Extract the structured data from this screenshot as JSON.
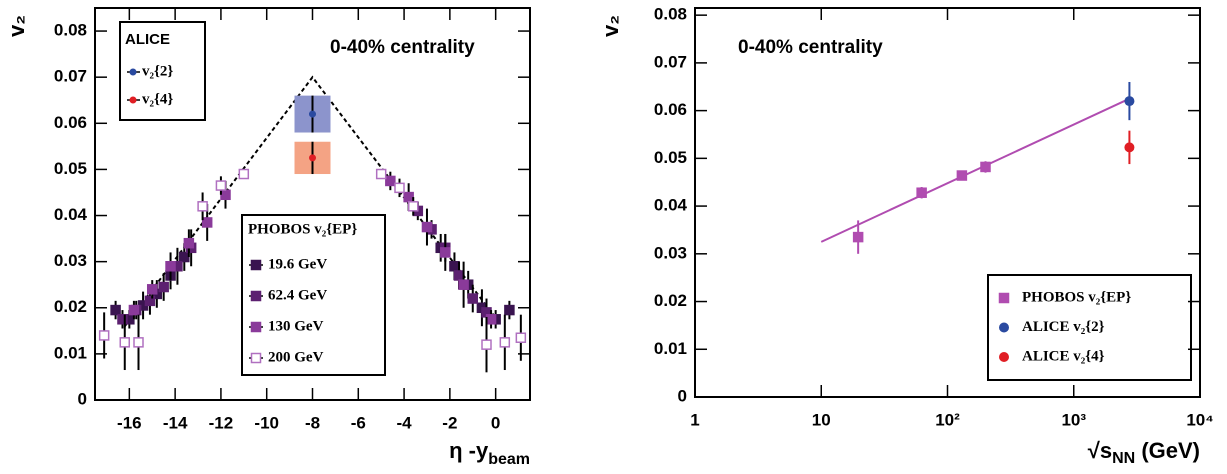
{
  "chart_data": [
    {
      "type": "scatter",
      "annotation": "0-40% centrality",
      "y_label": "v₂",
      "x_label": {
        "main": "η -y",
        "sub": "beam"
      },
      "xlim": [
        -17.5,
        1.5
      ],
      "xticks": [
        -16,
        -14,
        -12,
        -10,
        -8,
        -6,
        -4,
        -2,
        0
      ],
      "ylim": [
        0,
        0.085
      ],
      "yticks": [
        0,
        0.01,
        0.02,
        0.03,
        0.04,
        0.05,
        0.06,
        0.07,
        0.08
      ],
      "legend_title": "PHOBOS v₂{EP}",
      "series": [
        {
          "name": "19.6 GeV",
          "color": "#3a1450",
          "marker": "square",
          "x": [
            -16.6,
            -16.0,
            -15.4,
            -14.8,
            -14.2,
            -13.6,
            -2.4,
            -1.8,
            -1.2,
            -0.6,
            0.0,
            0.6
          ],
          "values": [
            0.0195,
            0.0175,
            0.0205,
            0.023,
            0.027,
            0.031,
            0.033,
            0.029,
            0.025,
            0.02,
            0.0175,
            0.0195
          ],
          "errors": [
            0.002,
            0.002,
            0.003,
            0.003,
            0.003,
            0.003,
            0.003,
            0.003,
            0.003,
            0.004,
            0.002,
            0.002
          ]
        },
        {
          "name": "62.4 GeV",
          "color": "#5c2070",
          "marker": "square",
          "x": [
            -16.3,
            -15.7,
            -15.1,
            -14.5,
            -13.9,
            -13.3,
            -3.4,
            -2.8,
            -2.2,
            -1.6,
            -1.0,
            -0.4
          ],
          "values": [
            0.0175,
            0.0195,
            0.0215,
            0.0245,
            0.029,
            0.033,
            0.041,
            0.037,
            0.033,
            0.027,
            0.022,
            0.019
          ],
          "errors": [
            0.002,
            0.002,
            0.003,
            0.003,
            0.004,
            0.004,
            0.002,
            0.002,
            0.003,
            0.003,
            0.003,
            0.003
          ]
        },
        {
          "name": "130 GeV",
          "color": "#8a3a9a",
          "marker": "square",
          "x": [
            -15.8,
            -15.0,
            -14.2,
            -13.4,
            -12.6,
            -11.8,
            -4.6,
            -3.8,
            -3.0,
            -2.2,
            -1.4,
            -0.2
          ],
          "values": [
            0.0195,
            0.024,
            0.029,
            0.034,
            0.0385,
            0.0445,
            0.0475,
            0.044,
            0.0375,
            0.032,
            0.025,
            0.0175
          ],
          "errors": [
            0.002,
            0.002,
            0.003,
            0.003,
            0.004,
            0.003,
            0.002,
            0.003,
            0.004,
            0.004,
            0.005,
            0.002
          ]
        },
        {
          "name": "200 GeV",
          "color": "#b070c0",
          "marker": "open-square",
          "x": [
            -17.1,
            -16.2,
            -15.6,
            -12.8,
            -12.0,
            -11.0,
            -5.0,
            -4.2,
            -3.6,
            -0.4,
            0.4,
            1.1
          ],
          "values": [
            0.014,
            0.0125,
            0.0125,
            0.042,
            0.0465,
            0.049,
            0.049,
            0.046,
            0.042,
            0.012,
            0.0125,
            0.0135
          ],
          "errors": [
            0.005,
            0.006,
            0.006,
            0.003,
            0.002,
            0.001,
            0.001,
            0.002,
            0.002,
            0.006,
            0.006,
            0.005
          ]
        }
      ],
      "alice": {
        "title": "ALICE",
        "series": [
          {
            "name": "v₂{2}",
            "color": "#2a4aa0",
            "box_color": "#8c94cc",
            "marker": "circle",
            "x": [
              -8
            ],
            "values": [
              0.062
            ],
            "errors": [
              0.004
            ]
          },
          {
            "name": "v₂{4}",
            "color": "#e01e24",
            "box_color": "#f4a384",
            "marker": "circle",
            "x": [
              -8
            ],
            "values": [
              0.0525
            ],
            "errors": [
              0.0035
            ]
          }
        ]
      },
      "trend": {
        "x": [
          -16.2,
          -8,
          0.2
        ],
        "y": [
          0.016,
          0.07,
          0.0165
        ]
      }
    },
    {
      "type": "scatter",
      "annotation": "0-40% centrality",
      "y_label": "v₂",
      "x_label": {
        "main": "√s",
        "sub": "NN",
        "tail": " (GeV)"
      },
      "xscale": "log",
      "xlim": [
        1,
        10000
      ],
      "xticks": [
        1,
        10,
        {
          "value": 100,
          "label": "10²"
        },
        {
          "value": 1000,
          "label": "10³"
        },
        {
          "value": 10000,
          "label": "10⁴"
        }
      ],
      "ylim": [
        0,
        0.0815
      ],
      "yticks": [
        0,
        0.01,
        0.02,
        0.03,
        0.04,
        0.05,
        0.06,
        0.07,
        0.08
      ],
      "series": [
        {
          "name": "PHOBOS v₂{EP}",
          "color": "#b04cb0",
          "marker": "square",
          "x": [
            19.6,
            62.4,
            130,
            200
          ],
          "values": [
            0.0335,
            0.0428,
            0.0464,
            0.0482
          ],
          "errors": [
            0.0035,
            0.0012,
            0.0008,
            0.0012
          ]
        },
        {
          "name": "ALICE v₂{2}",
          "color": "#2a4aa0",
          "marker": "circle",
          "x": [
            2760
          ],
          "values": [
            0.062
          ],
          "errors": [
            0.004
          ]
        },
        {
          "name": "ALICE v₂{4}",
          "color": "#e01e24",
          "marker": "circle",
          "x": [
            2760
          ],
          "values": [
            0.0523
          ],
          "errors": [
            0.0035
          ]
        }
      ],
      "fit": {
        "color": "#b04cb0",
        "x": [
          10,
          2760
        ],
        "y": [
          0.0325,
          0.0625
        ]
      }
    }
  ]
}
